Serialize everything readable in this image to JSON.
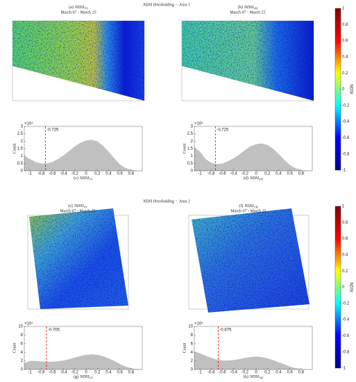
{
  "areas": [
    {
      "title": "NDSI thresholding − Area 1",
      "maps": [
        {
          "panel": "(a)",
          "var": "NDSI",
          "sub": "VV",
          "dates": "March 07 - March 25"
        },
        {
          "panel": "(b)",
          "var": "NDSI",
          "sub": "VH",
          "dates": "March 07 - March 25"
        }
      ]
    },
    {
      "title": "NDSI thresholding − Area 2",
      "maps": [
        {
          "panel": "(e)",
          "var": "NDSI",
          "sub": "VV",
          "dates": "March 07 - March 25"
        },
        {
          "panel": "(f)",
          "var": "NDSI",
          "sub": "VH",
          "dates": "March 07 - March 25"
        }
      ]
    }
  ],
  "colorbars": [
    {
      "label": "NDSI",
      "lim": [
        -1,
        1
      ],
      "ticks": [
        -1,
        -0.8,
        -0.6,
        -0.4,
        -0.2,
        0,
        0.2,
        0.4,
        0.6,
        0.8,
        1
      ],
      "colormap": [
        "#00008f",
        "#0000ff",
        "#00ffff",
        "#ffff00",
        "#ff0000",
        "#800000"
      ]
    },
    {
      "label": "NDSI",
      "lim": [
        -1,
        1
      ],
      "ticks": [
        -1,
        -0.8,
        -0.6,
        -0.4,
        -0.2,
        0,
        0.2,
        0.4,
        0.6,
        0.8,
        1
      ],
      "colormap": [
        "#00008f",
        "#0000ff",
        "#00ffff",
        "#ffff00",
        "#ff0000",
        "#800000"
      ]
    }
  ],
  "chart_data": [
    {
      "type": "area",
      "panel": "(c)",
      "xvar": "NDSI",
      "xsub": "VV",
      "ylabel": "Count",
      "multiplier": "×10⁴",
      "color": "#c0c0c0",
      "threshold": -0.725,
      "threshold_color": "#ff0000",
      "x": [
        -1.1,
        -1.0,
        -0.9,
        -0.8,
        -0.7,
        -0.6,
        -0.5,
        -0.4,
        -0.3,
        -0.2,
        -0.1,
        0,
        0.1,
        0.2,
        0.3,
        0.4,
        0.5,
        0.6,
        0.7,
        0.8,
        0.9,
        1.0
      ],
      "values": [
        1.0,
        0.8,
        0.6,
        0.5,
        0.5,
        0.6,
        0.8,
        1.05,
        1.35,
        1.65,
        1.9,
        2.05,
        2.1,
        2.0,
        1.7,
        1.3,
        0.85,
        0.45,
        0.2,
        0.07,
        0.02,
        0
      ],
      "xlim": [
        -1.1,
        1.0
      ],
      "xticks": [
        -1,
        -0.8,
        -0.6,
        -0.4,
        -0.2,
        0,
        0.2,
        0.4,
        0.6,
        0.8
      ],
      "ylim": [
        0,
        3
      ],
      "yticks": [
        0,
        0.5,
        1,
        1.5,
        2,
        2.5,
        3
      ]
    },
    {
      "type": "area",
      "panel": "(d)",
      "xvar": "NDSI",
      "xsub": "VH",
      "ylabel": "Count",
      "multiplier": "×10⁴",
      "color": "#c0c0c0",
      "threshold": -0.725,
      "threshold_color": "#ff0000",
      "x": [
        -1.1,
        -1.0,
        -0.9,
        -0.8,
        -0.7,
        -0.6,
        -0.5,
        -0.4,
        -0.3,
        -0.2,
        -0.1,
        0,
        0.1,
        0.2,
        0.3,
        0.4,
        0.5,
        0.6,
        0.7,
        0.8,
        0.9,
        1.0
      ],
      "values": [
        1.6,
        1.3,
        0.8,
        0.55,
        0.45,
        0.5,
        0.65,
        0.85,
        1.1,
        1.4,
        1.65,
        1.8,
        1.85,
        1.75,
        1.5,
        1.15,
        0.75,
        0.4,
        0.18,
        0.06,
        0.02,
        0
      ],
      "xlim": [
        -1.1,
        1.0
      ],
      "xticks": [
        -1,
        -0.8,
        -0.6,
        -0.4,
        -0.2,
        0,
        0.2,
        0.4,
        0.6,
        0.8
      ],
      "ylim": [
        0,
        3
      ],
      "yticks": [
        0,
        0.5,
        1,
        1.5,
        2,
        2.5,
        3
      ]
    },
    {
      "type": "area",
      "panel": "(g)",
      "xvar": "NDSI",
      "xsub": "VV",
      "ylabel": "Count",
      "multiplier": "×10⁴",
      "color": "#c0c0c0",
      "threshold": -0.705,
      "threshold_color": "#ff0000",
      "x": [
        -1.1,
        -1.0,
        -0.9,
        -0.8,
        -0.7,
        -0.6,
        -0.5,
        -0.4,
        -0.3,
        -0.2,
        -0.1,
        0,
        0.1,
        0.2,
        0.3,
        0.4,
        0.5,
        0.6,
        0.7,
        0.8,
        0.9,
        1.0
      ],
      "values": [
        1.5,
        2.0,
        2.0,
        1.9,
        1.8,
        1.8,
        1.9,
        2.1,
        2.4,
        2.8,
        3.1,
        3.4,
        3.5,
        3.4,
        3.1,
        2.6,
        2.0,
        1.3,
        0.7,
        0.3,
        0.1,
        0
      ],
      "xlim": [
        -1.1,
        1.0
      ],
      "xticks": [
        -1,
        -0.8,
        -0.6,
        -0.4,
        -0.2,
        0,
        0.2,
        0.4,
        0.6,
        0.8
      ],
      "ylim": [
        0,
        10
      ],
      "yticks": [
        0,
        2,
        4,
        6,
        8,
        10
      ]
    },
    {
      "type": "area",
      "panel": "(h)",
      "xvar": "NDSI",
      "xsub": "VH",
      "ylabel": "Count",
      "multiplier": "×10⁴",
      "color": "#c0c0c0",
      "threshold": -0.675,
      "threshold_color": "#ff0000",
      "x": [
        -1.1,
        -1.0,
        -0.9,
        -0.8,
        -0.7,
        -0.6,
        -0.5,
        -0.4,
        -0.3,
        -0.2,
        -0.1,
        0,
        0.1,
        0.2,
        0.3,
        0.4,
        0.5,
        0.6,
        0.7,
        0.8,
        0.9,
        1.0
      ],
      "values": [
        4.2,
        3.8,
        3.2,
        2.7,
        2.3,
        2.1,
        2.1,
        2.2,
        2.4,
        2.7,
        2.9,
        3.0,
        2.9,
        2.6,
        2.2,
        1.7,
        1.2,
        0.7,
        0.35,
        0.15,
        0.05,
        0
      ],
      "xlim": [
        -1.1,
        1.0
      ],
      "xticks": [
        -1,
        -0.8,
        -0.6,
        -0.4,
        -0.2,
        0,
        0.2,
        0.4,
        0.6,
        0.8
      ],
      "ylim": [
        0,
        10
      ],
      "yticks": [
        0,
        2,
        4,
        6,
        8,
        10
      ]
    }
  ]
}
